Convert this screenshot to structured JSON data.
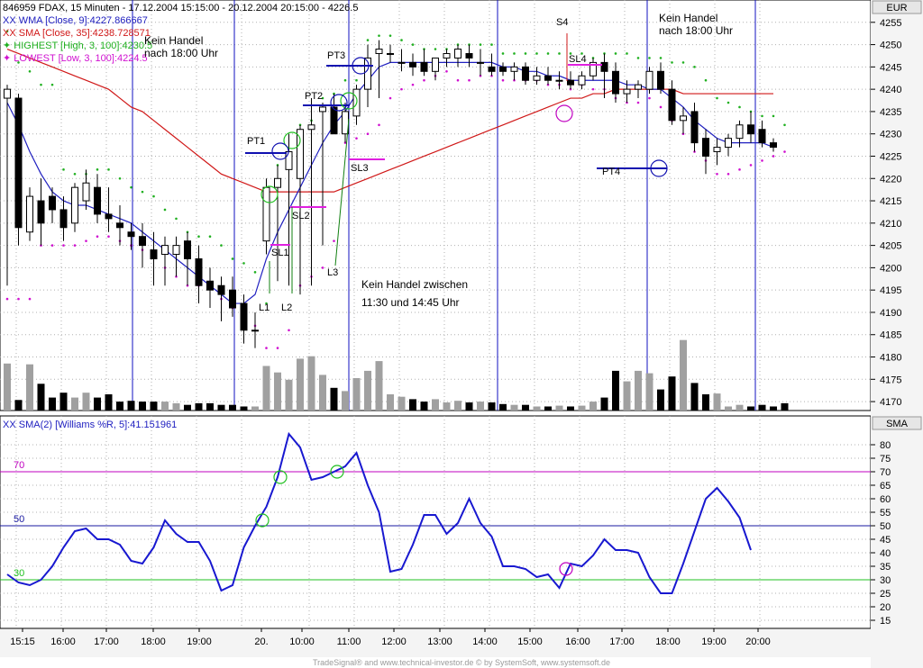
{
  "price_panel": {
    "header_line": "846959 FDAX, 15 Minuten - 17.12.2004 15:15:00 - 20.12.2004 20:15:00 - 4226.5",
    "currency": "EUR",
    "legend": [
      {
        "prefix": "XX",
        "text": "WMA [Close, 9]:4227.866667",
        "color": "#2020c0"
      },
      {
        "prefix": "XX",
        "text": "SMA [Close, 35]:4238.728571",
        "color": "#d01818"
      },
      {
        "prefix": "✦",
        "text": "HIGHEST [High, 3, 100]:4230.5",
        "color": "#20b020"
      },
      {
        "prefix": "✦",
        "text": "LOWEST [Low, 3, 100]:4224.5",
        "color": "#d010d0"
      }
    ],
    "y_ticks": [
      "4255",
      "4250",
      "4245",
      "4240",
      "4235",
      "4230",
      "4225",
      "4220",
      "4215",
      "4210",
      "4205",
      "4200",
      "4195",
      "4190",
      "4185",
      "4180",
      "4175",
      "4170"
    ],
    "annotations": {
      "kein_handel_1": [
        "Kein Handel",
        "nach 18:00 Uhr"
      ],
      "kein_handel_2": [
        "Kein Handel",
        "nach 18:00 Uhr"
      ],
      "kein_handel_mid": [
        "Kein Handel zwischen",
        "11:30 und 14:45 Uhr"
      ],
      "pt1": "PT1",
      "pt2": "PT2",
      "pt3": "PT3",
      "pt4": "PT4",
      "sl1": "SL1",
      "sl2": "SL2",
      "sl3": "SL3",
      "sl4": "SL4",
      "l1": "L1",
      "l2": "L2",
      "l3": "L3",
      "s4": "S4"
    }
  },
  "indicator_panel": {
    "legend": {
      "prefix": "XX",
      "text": "SMA(2) [Williams %R, 5]:41.151961",
      "color": "#2020c0"
    },
    "label": "SMA",
    "y_ticks": [
      "80",
      "75",
      "70",
      "65",
      "60",
      "55",
      "50",
      "45",
      "40",
      "35",
      "30",
      "25",
      "20",
      "15"
    ],
    "levels": [
      {
        "value": 70,
        "label": "70",
        "color": "#c000c0"
      },
      {
        "value": 50,
        "label": "50",
        "color": "#1818a0"
      },
      {
        "value": 30,
        "label": "30",
        "color": "#20c020"
      }
    ]
  },
  "x_axis": {
    "ticks": [
      "15:15",
      "16:00",
      "17:00",
      "18:00",
      "19:00",
      "20.",
      "10:00",
      "11:00",
      "12:00",
      "13:00",
      "14:00",
      "15:00",
      "16:00",
      "17:00",
      "18:00",
      "19:00",
      "20:00"
    ]
  },
  "footer": "TradeSignal® and www.technical-investor.de © by SystemSoft, www.systemsoft.de",
  "chart_data": {
    "type": "candlestick",
    "instrument": "846959 FDAX",
    "interval": "15 Minuten",
    "price_ylim": [
      4168,
      4260
    ],
    "bars": [
      {
        "o": 4238,
        "h": 4241,
        "l": 4196,
        "c": 4240
      },
      {
        "o": 4238,
        "h": 4239,
        "l": 4205,
        "c": 4209
      },
      {
        "o": 4208,
        "h": 4218,
        "l": 4206,
        "c": 4216
      },
      {
        "o": 4215,
        "h": 4220,
        "l": 4205,
        "c": 4210
      },
      {
        "o": 4216,
        "h": 4218,
        "l": 4210,
        "c": 4213
      },
      {
        "o": 4213,
        "h": 4216,
        "l": 4206,
        "c": 4209
      },
      {
        "o": 4210,
        "h": 4219,
        "l": 4208,
        "c": 4218
      },
      {
        "o": 4215,
        "h": 4222,
        "l": 4213,
        "c": 4219
      },
      {
        "o": 4218,
        "h": 4221,
        "l": 4210,
        "c": 4212
      },
      {
        "o": 4212,
        "h": 4218,
        "l": 4208,
        "c": 4211
      },
      {
        "o": 4210,
        "h": 4214,
        "l": 4205,
        "c": 4209
      },
      {
        "o": 4208,
        "h": 4210,
        "l": 4204,
        "c": 4207
      },
      {
        "o": 4207,
        "h": 4210,
        "l": 4200,
        "c": 4205
      },
      {
        "o": 4204,
        "h": 4208,
        "l": 4196,
        "c": 4202
      },
      {
        "o": 4203,
        "h": 4207,
        "l": 4196,
        "c": 4205
      },
      {
        "o": 4203,
        "h": 4207,
        "l": 4198,
        "c": 4205
      },
      {
        "o": 4206,
        "h": 4208,
        "l": 4196,
        "c": 4202
      },
      {
        "o": 4202,
        "h": 4205,
        "l": 4192,
        "c": 4196
      },
      {
        "o": 4197,
        "h": 4200,
        "l": 4191,
        "c": 4195
      },
      {
        "o": 4196,
        "h": 4198,
        "l": 4188,
        "c": 4194
      },
      {
        "o": 4195,
        "h": 4198,
        "l": 4189,
        "c": 4191
      },
      {
        "o": 4192,
        "h": 4194,
        "l": 4183,
        "c": 4186
      },
      {
        "o": 4186,
        "h": 4190,
        "l": 4182,
        "c": 4186
      },
      {
        "o": 4206,
        "h": 4220,
        "l": 4203,
        "c": 4218
      },
      {
        "o": 4218,
        "h": 4223,
        "l": 4197,
        "c": 4220
      },
      {
        "o": 4222,
        "h": 4230,
        "l": 4196,
        "c": 4226
      },
      {
        "o": 4220,
        "h": 4232,
        "l": 4194,
        "c": 4231
      },
      {
        "o": 4231,
        "h": 4238,
        "l": 4196,
        "c": 4232
      },
      {
        "o": 4235,
        "h": 4237,
        "l": 4205,
        "c": 4236
      },
      {
        "o": 4236,
        "h": 4239,
        "l": 4230,
        "c": 4230
      },
      {
        "o": 4230,
        "h": 4237,
        "l": 4228,
        "c": 4235
      },
      {
        "o": 4234,
        "h": 4241,
        "l": 4232,
        "c": 4240
      },
      {
        "o": 4240,
        "h": 4250,
        "l": 4236,
        "c": 4247
      },
      {
        "o": 4248,
        "h": 4251,
        "l": 4238,
        "c": 4249
      },
      {
        "o": 4248,
        "h": 4250,
        "l": 4246,
        "c": 4248
      },
      {
        "o": 4246,
        "h": 4249,
        "l": 4244,
        "c": 4246
      },
      {
        "o": 4246,
        "h": 4248,
        "l": 4243,
        "c": 4245
      },
      {
        "o": 4246,
        "h": 4249,
        "l": 4243,
        "c": 4244
      },
      {
        "o": 4244,
        "h": 4247,
        "l": 4242,
        "c": 4247
      },
      {
        "o": 4247,
        "h": 4249,
        "l": 4245,
        "c": 4248
      },
      {
        "o": 4247,
        "h": 4250,
        "l": 4245,
        "c": 4249
      },
      {
        "o": 4248,
        "h": 4250,
        "l": 4245,
        "c": 4247
      },
      {
        "o": 4246,
        "h": 4249,
        "l": 4243,
        "c": 4246
      },
      {
        "o": 4245,
        "h": 4248,
        "l": 4243,
        "c": 4244
      },
      {
        "o": 4245,
        "h": 4246,
        "l": 4243,
        "c": 4244
      },
      {
        "o": 4244,
        "h": 4246,
        "l": 4242,
        "c": 4245
      },
      {
        "o": 4245,
        "h": 4246,
        "l": 4241,
        "c": 4242
      },
      {
        "o": 4242,
        "h": 4245,
        "l": 4241,
        "c": 4243
      },
      {
        "o": 4243,
        "h": 4245,
        "l": 4241,
        "c": 4242
      },
      {
        "o": 4242,
        "h": 4244,
        "l": 4240,
        "c": 4242
      },
      {
        "o": 4242,
        "h": 4244,
        "l": 4240,
        "c": 4241
      },
      {
        "o": 4241,
        "h": 4244,
        "l": 4240,
        "c": 4243
      },
      {
        "o": 4243,
        "h": 4247,
        "l": 4242,
        "c": 4246
      },
      {
        "o": 4246,
        "h": 4248,
        "l": 4238,
        "c": 4244
      },
      {
        "o": 4244,
        "h": 4246,
        "l": 4237,
        "c": 4239
      },
      {
        "o": 4239,
        "h": 4242,
        "l": 4237,
        "c": 4240
      },
      {
        "o": 4240,
        "h": 4242,
        "l": 4238,
        "c": 4241
      },
      {
        "o": 4240,
        "h": 4245,
        "l": 4239,
        "c": 4244
      },
      {
        "o": 4244,
        "h": 4246,
        "l": 4239,
        "c": 4240
      },
      {
        "o": 4240,
        "h": 4242,
        "l": 4232,
        "c": 4233
      },
      {
        "o": 4233,
        "h": 4236,
        "l": 4230,
        "c": 4234
      },
      {
        "o": 4235,
        "h": 4237,
        "l": 4226,
        "c": 4228
      },
      {
        "o": 4229,
        "h": 4231,
        "l": 4221,
        "c": 4225
      },
      {
        "o": 4226,
        "h": 4229,
        "l": 4223,
        "c": 4227
      },
      {
        "o": 4227,
        "h": 4230,
        "l": 4225,
        "c": 4229
      },
      {
        "o": 4229,
        "h": 4233,
        "l": 4227,
        "c": 4232
      },
      {
        "o": 4232,
        "h": 4235,
        "l": 4228,
        "c": 4230
      },
      {
        "o": 4231,
        "h": 4233,
        "l": 4227,
        "c": 4228
      },
      {
        "o": 4228,
        "h": 4229,
        "l": 4226,
        "c": 4227
      }
    ],
    "volume_relative": [
      0.58,
      0.13,
      0.57,
      0.33,
      0.16,
      0.22,
      0.16,
      0.22,
      0.16,
      0.2,
      0.11,
      0.12,
      0.11,
      0.11,
      0.11,
      0.09,
      0.07,
      0.09,
      0.09,
      0.07,
      0.07,
      0.05,
      0.05,
      0.55,
      0.47,
      0.38,
      0.64,
      0.67,
      0.44,
      0.28,
      0.24,
      0.4,
      0.49,
      0.61,
      0.2,
      0.17,
      0.14,
      0.11,
      0.14,
      0.1,
      0.12,
      0.1,
      0.11,
      0.1,
      0.08,
      0.07,
      0.07,
      0.05,
      0.05,
      0.06,
      0.05,
      0.06,
      0.11,
      0.16,
      0.49,
      0.36,
      0.49,
      0.46,
      0.26,
      0.42,
      0.87,
      0.34,
      0.2,
      0.21,
      0.05,
      0.07,
      0.05,
      0.07,
      0.05,
      0.09
    ],
    "wma9": [
      4237,
      4232,
      4226,
      4221,
      4217,
      4215,
      4214,
      4214,
      4213,
      4212,
      4211,
      4210,
      4208,
      4206,
      4204,
      4202,
      4200,
      4198,
      4196,
      4194,
      4192,
      4192,
      4194,
      4202,
      4208,
      4213,
      4218,
      4223,
      4228,
      4232,
      4235,
      4239,
      4242,
      4245,
      4246,
      4246,
      4246,
      4246,
      4246,
      4246,
      4246,
      4246,
      4246,
      4246,
      4245,
      4245,
      4244,
      4244,
      4243,
      4243,
      4242,
      4242,
      4242,
      4242,
      4242,
      4241,
      4241,
      4240,
      4240,
      4238,
      4236,
      4233,
      4231,
      4229,
      4228,
      4228,
      4228,
      4228,
      4227
    ],
    "sma35": [
      4249,
      4248,
      4247,
      4246,
      4245,
      4244,
      4243,
      4242,
      4241,
      4240,
      4238,
      4236,
      4235,
      4233,
      4231,
      4229,
      4227,
      4225,
      4223,
      4221,
      4220,
      4219,
      4218,
      4217,
      4217,
      4217,
      4217,
      4217,
      4217,
      4217,
      4218,
      4219,
      4220,
      4221,
      4222,
      4223,
      4224,
      4225,
      4226,
      4227,
      4228,
      4229,
      4230,
      4231,
      4232,
      4233,
      4234,
      4235,
      4236,
      4237,
      4238,
      4238,
      4239,
      4239,
      4240,
      4240,
      4240,
      4240,
      4240,
      4240,
      4239,
      4239,
      4239,
      4239,
      4239,
      4239,
      4239,
      4239,
      4239
    ],
    "highest_dots": [
      4253,
      4246,
      4244,
      4241,
      4241,
      4222,
      4221,
      4221,
      4222,
      4222,
      4220,
      4218,
      4217,
      4216,
      4213,
      4211,
      4208,
      4207,
      4207,
      4205,
      4202,
      4201,
      4199,
      4192,
      4223,
      4224,
      4232,
      4233,
      4238,
      4239,
      4242,
      4242,
      4251,
      4252,
      4252,
      4251,
      4250,
      4249,
      4249,
      4249,
      4250,
      4250,
      4250,
      4250,
      4248,
      4248,
      4248,
      4248,
      4248,
      4248,
      4248,
      4248,
      4247,
      4248,
      4248,
      4248,
      4247,
      4247,
      4247,
      4246,
      4246,
      4245,
      4242,
      4238,
      4237,
      4236,
      4235,
      4234,
      4234,
      4232
    ],
    "lowest_dots": [
      4193,
      4193,
      4193,
      4205,
      4205,
      4205,
      4205,
      4206,
      4207,
      4207,
      4206,
      4205,
      4204,
      4203,
      4200,
      4198,
      4196,
      4196,
      4196,
      4193,
      4191,
      4189,
      4187,
      4182,
      4182,
      4186,
      4196,
      4198,
      4200,
      4206,
      4228,
      4229,
      4230,
      4232,
      4238,
      4240,
      4241,
      4242,
      4243,
      4244,
      4242,
      4242,
      4243,
      4243,
      4242,
      4242,
      4242,
      4242,
      4241,
      4241,
      4240,
      4241,
      4240,
      4240,
      4238,
      4237,
      4237,
      4238,
      4236,
      4233,
      4230,
      4226,
      4224,
      4221,
      4221,
      4222,
      4223,
      4224,
      4225,
      4226
    ],
    "indicator_ylim": [
      12,
      88
    ],
    "williams_sma": [
      32,
      29,
      28,
      30,
      35,
      42,
      48,
      49,
      45,
      45,
      43,
      37,
      36,
      42,
      52,
      47,
      44,
      44,
      37,
      26,
      28,
      42,
      50,
      57,
      68,
      84,
      79,
      67,
      68,
      70,
      72,
      77,
      65,
      55,
      33,
      34,
      43,
      54,
      54,
      47,
      51,
      60,
      51,
      46,
      35,
      35,
      34,
      31,
      32,
      27,
      36,
      35,
      39,
      45,
      41,
      41,
      40,
      31,
      25,
      25,
      36,
      48,
      60,
      64,
      59,
      53,
      41
    ]
  }
}
